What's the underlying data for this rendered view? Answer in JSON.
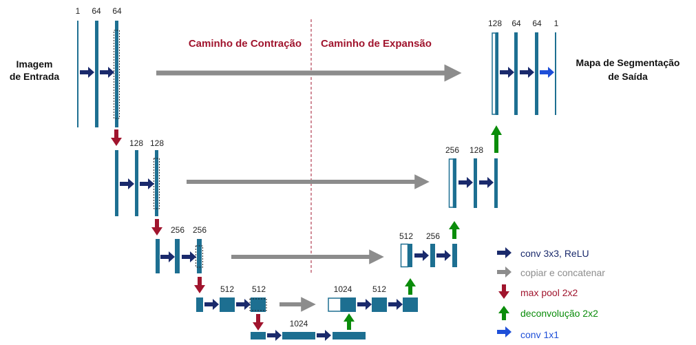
{
  "labels": {
    "input": [
      "Imagem",
      "de Entrada"
    ],
    "output": [
      "Mapa de Segmentação",
      "de Saída"
    ],
    "contraction": "Caminho de Contração",
    "expansion": "Caminho de Expansão"
  },
  "channels": {
    "l1_down": [
      "1",
      "64",
      "64"
    ],
    "l2_down": [
      "128",
      "128"
    ],
    "l3_down": [
      "256",
      "256"
    ],
    "l4_down": [
      "512",
      "512"
    ],
    "bottom": "1024",
    "l4_up": [
      "1024",
      "512"
    ],
    "l3_up": [
      "512",
      "256"
    ],
    "l2_up": [
      "256",
      "128"
    ],
    "l1_up": [
      "128",
      "64",
      "64",
      "1"
    ]
  },
  "legend": [
    {
      "label": "conv 3x3, ReLU",
      "icon": "arrow-right-icon",
      "color": "#1a2a6c"
    },
    {
      "label": "copiar e concatenar",
      "icon": "arrow-right-icon",
      "color": "#8c8c8c"
    },
    {
      "label": "max pool 2x2",
      "icon": "arrow-down-icon",
      "color": "#a0142d"
    },
    {
      "label": "deconvolução 2x2",
      "icon": "arrow-up-icon",
      "color": "#0a8c0a"
    },
    {
      "label": "conv 1x1",
      "icon": "arrow-right-icon",
      "color": "#1e4fd8"
    }
  ],
  "colors": {
    "block": "#1d6f91",
    "conv": "#1a2a6c",
    "copy": "#8c8c8c",
    "pool": "#a0142d",
    "deconv": "#0a8c0a",
    "conv1x1": "#1e4fd8",
    "title": "#a0142d",
    "divider": "#a0142d"
  }
}
